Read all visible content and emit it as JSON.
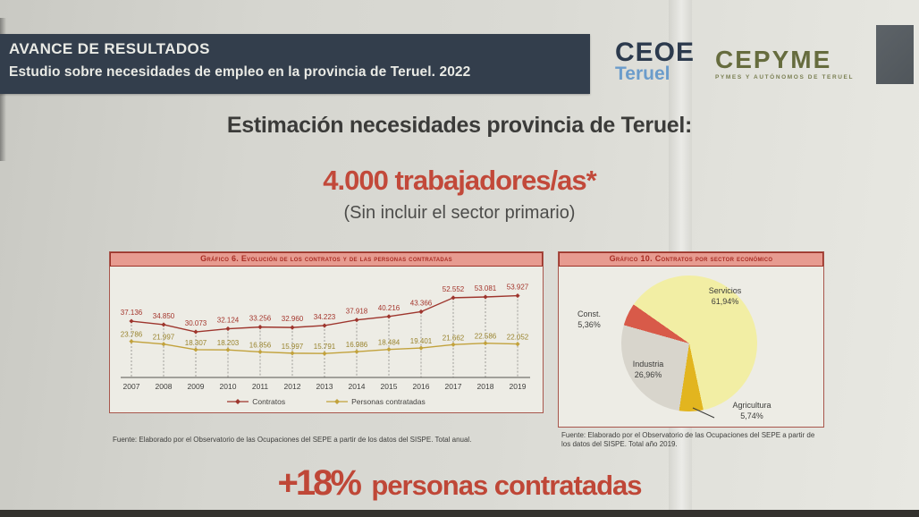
{
  "header": {
    "line1": "AVANCE DE RESULTADOS",
    "line2": "Estudio sobre necesidades de empleo en la provincia de Teruel. 2022"
  },
  "logos": {
    "ceoe_name": "CEOE",
    "ceoe_sub": "Teruel",
    "cepyme_name": "CEPYME",
    "cepyme_sub": "PYMES Y AUTÓNOMOS DE TERUEL"
  },
  "headline": {
    "title": "Estimación necesidades provincia de Teruel:",
    "highlight": "4.000 trabajadores/as*",
    "subtitle": "(Sin incluir el sector primario)"
  },
  "footer": {
    "value": "+18%",
    "label": "personas contratadas"
  },
  "colors": {
    "accent_red": "#c2493a",
    "header_bg": "#333e4c",
    "panel_title_bg": "#e79b90",
    "panel_title_text": "#a92d24"
  },
  "chart_data": [
    {
      "type": "line",
      "title": "Gráfico 6. Evolución de los contratos y de las personas contratadas",
      "categories": [
        "2007",
        "2008",
        "2009",
        "2010",
        "2011",
        "2012",
        "2013",
        "2014",
        "2015",
        "2016",
        "2017",
        "2018",
        "2019"
      ],
      "series": [
        {
          "name": "Contratos",
          "color": "#9e362e",
          "label_color": "#a4352c",
          "values": [
            37136,
            34850,
            30073,
            32124,
            33256,
            32960,
            34223,
            37918,
            40216,
            43366,
            52552,
            53081,
            53927
          ],
          "labels": [
            "37.136",
            "34.850",
            "30.073",
            "32.124",
            "33.256",
            "32.960",
            "34.223",
            "37.918",
            "40.216",
            "43.366",
            "52.552",
            "53.081",
            "53.927"
          ]
        },
        {
          "name": "Personas contratadas",
          "color": "#c2a23c",
          "label_color": "#99842e",
          "values": [
            23786,
            21997,
            18307,
            18203,
            16856,
            15997,
            15791,
            16986,
            18484,
            19401,
            21662,
            22586,
            22052
          ],
          "labels": [
            "23.786",
            "21.997",
            "18.307",
            "18.203",
            "16.856",
            "15.997",
            "15.791",
            "16.986",
            "18.484",
            "19.401",
            "21.662",
            "22.586",
            "22.052"
          ]
        }
      ],
      "ylim": [
        0,
        63700
      ],
      "grid": "dashed vertical drop lines to x-axis",
      "legend_position": "bottom",
      "source": "Fuente: Elaborado por el Observatorio de las Ocupaciones del SEPE a partir de los datos del SISPE. Total anual."
    },
    {
      "type": "pie",
      "title": "Gráfico 10. Contratos por sector económico",
      "start_angle_deg": 305,
      "slices": [
        {
          "label": "Servicios",
          "pct": 61.94,
          "pct_display": "61,94%",
          "color": "#f2eea4",
          "label_pos": [
            186,
            22
          ],
          "outside": false
        },
        {
          "label": "Agricultura",
          "pct": 5.74,
          "pct_display": "5,74%",
          "color": "#e2b51f",
          "label_pos": [
            216,
            150
          ],
          "outside": true,
          "leader": [
            [
              150,
              158
            ],
            [
              174,
              169
            ]
          ]
        },
        {
          "label": "Industria",
          "pct": 26.96,
          "pct_display": "26,96%",
          "color": "#d8d5cc",
          "label_pos": [
            100,
            104
          ],
          "outside": false
        },
        {
          "label": "Const.",
          "pct": 5.36,
          "pct_display": "5,36%",
          "color": "#d85a49",
          "label_pos": [
            34,
            48
          ],
          "outside": true
        }
      ],
      "source": "Fuente: Elaborado por el Observatorio de las Ocupaciones del SEPE a partir de los datos del SISPE. Total año 2019."
    }
  ]
}
